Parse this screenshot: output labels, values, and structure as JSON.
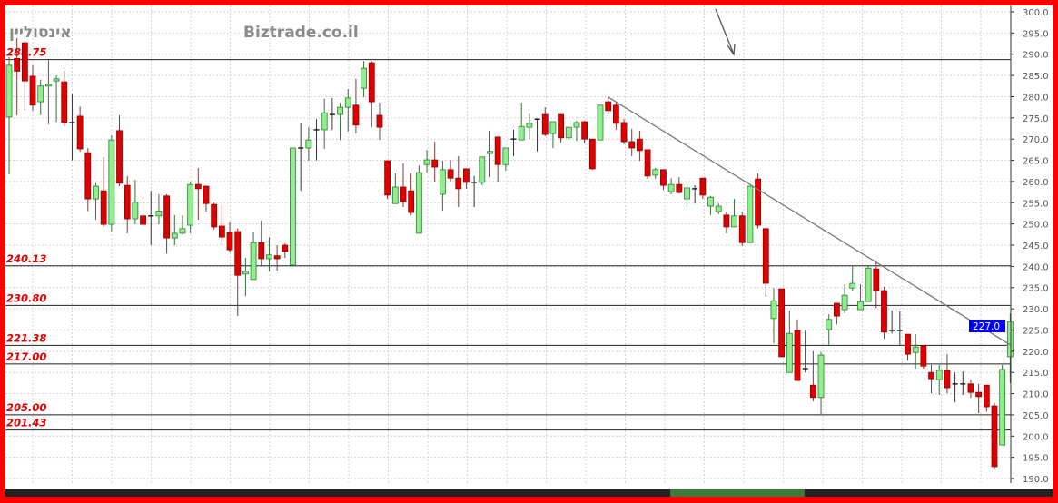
{
  "watermark": {
    "symbol": "אינסוליין",
    "site": "Biztrade.co.il"
  },
  "price_tag": "227.0",
  "colors": {
    "up": "#90ee90",
    "up_border": "#2e7d2e",
    "down": "#e00000",
    "down_border": "#8b0000",
    "frame": "#ff0000",
    "price_tag": "#0000ee",
    "level_label": "#e00000"
  },
  "chart_data": {
    "type": "candlestick",
    "title": "",
    "ylim": [
      188,
      301
    ],
    "y_ticks": [
      "300.0",
      "295.0",
      "290.0",
      "285.0",
      "280.0",
      "275.0",
      "270.0",
      "265.0",
      "260.0",
      "255.0",
      "250.0",
      "245.0",
      "240.0",
      "235.0",
      "230.0",
      "225.0",
      "220.0",
      "215.0",
      "210.0",
      "205.0",
      "200.0",
      "195.0",
      "190.0"
    ],
    "grid": true,
    "ohlc_fields": [
      "open",
      "high",
      "low",
      "close"
    ],
    "candles": [
      [
        275.2,
        289.3,
        261.7,
        287.4
      ],
      [
        289,
        293.8,
        275.6,
        286
      ],
      [
        292.7,
        293.2,
        276.7,
        283.7
      ],
      [
        284.8,
        287.4,
        276.7,
        278
      ],
      [
        278.8,
        284,
        275.6,
        282.5
      ],
      [
        282.5,
        288.9,
        273.5,
        282.9
      ],
      [
        283.7,
        285,
        274,
        284.2
      ],
      [
        283.5,
        286.1,
        273,
        273.9
      ],
      [
        273.9,
        280.7,
        265,
        273.9
      ],
      [
        275.4,
        277.7,
        267,
        267.7
      ],
      [
        266.8,
        267.9,
        253,
        255.9
      ],
      [
        255.9,
        259.6,
        251,
        258.9
      ],
      [
        257.8,
        265.8,
        249.3,
        249.9
      ],
      [
        249.9,
        270.9,
        248.2,
        269.8
      ],
      [
        272,
        275.6,
        258.9,
        259.6
      ],
      [
        259.1,
        261.3,
        247.8,
        251.2
      ],
      [
        251.2,
        260.4,
        249.9,
        255.1
      ],
      [
        251.9,
        256.3,
        249.9,
        249.9
      ],
      [
        251.9,
        257.8,
        245,
        251.9
      ],
      [
        251.9,
        257,
        249.9,
        253
      ],
      [
        256.6,
        257,
        243,
        246.7
      ],
      [
        246.7,
        252.1,
        245,
        247.8
      ],
      [
        247.8,
        252,
        247.6,
        248.9
      ],
      [
        249.7,
        260,
        247.8,
        259.3
      ],
      [
        259.3,
        263.2,
        251,
        258.3
      ],
      [
        258.9,
        258.9,
        252.9,
        254.8
      ],
      [
        254.6,
        255.1,
        248.6,
        249.3
      ],
      [
        249.5,
        254.8,
        245,
        246.9
      ],
      [
        248,
        250.4,
        243.3,
        243.9
      ],
      [
        248.2,
        248.9,
        228.3,
        237.9
      ],
      [
        238.2,
        242,
        233,
        238.8
      ],
      [
        236.9,
        248,
        236.9,
        245.6
      ],
      [
        245.6,
        250.8,
        240.1,
        241.8
      ],
      [
        241.8,
        246.9,
        238.8,
        242.7
      ],
      [
        242.5,
        245,
        239,
        241.8
      ],
      [
        245,
        245.4,
        242,
        243.5
      ],
      [
        240.3,
        267.9,
        240.3,
        267.9
      ],
      [
        267.9,
        273.7,
        257.8,
        267.9
      ],
      [
        267.9,
        272.8,
        264.9,
        269.8
      ],
      [
        272.2,
        274.7,
        265,
        272.2
      ],
      [
        272.2,
        279.5,
        267.7,
        276.2
      ],
      [
        275.8,
        279.7,
        272.2,
        275.8
      ],
      [
        275.8,
        278.6,
        269.8,
        277.5
      ],
      [
        277.5,
        281.8,
        271.8,
        279.7
      ],
      [
        278,
        284.2,
        271.3,
        273.3
      ],
      [
        282,
        288.4,
        279.9,
        286.7
      ],
      [
        288,
        288.4,
        272.8,
        278.8
      ],
      [
        275.6,
        278.6,
        269.8,
        272.8
      ],
      [
        264.9,
        264.9,
        255.9,
        256.8
      ],
      [
        254.8,
        261.9,
        254.8,
        258.7
      ],
      [
        258.7,
        264.3,
        254,
        255.3
      ],
      [
        257.8,
        261.9,
        252.1,
        252.7
      ],
      [
        247.8,
        263.8,
        247.8,
        262.1
      ],
      [
        264,
        267.5,
        262.1,
        265.1
      ],
      [
        265.1,
        269.4,
        260,
        263.4
      ],
      [
        257,
        264.9,
        253.1,
        262.8
      ],
      [
        262.8,
        265.1,
        260,
        260.8
      ],
      [
        260.8,
        266,
        254,
        258.3
      ],
      [
        263,
        263,
        258.3,
        259.8
      ],
      [
        259.8,
        261.3,
        254,
        259.8
      ],
      [
        259.8,
        265.8,
        259.1,
        265.8
      ],
      [
        266.6,
        272,
        261,
        267.1
      ],
      [
        270.5,
        270.5,
        260,
        264
      ],
      [
        264,
        267.9,
        262.6,
        267.9
      ],
      [
        270,
        272.2,
        266,
        270
      ],
      [
        269.8,
        278.6,
        269.8,
        273
      ],
      [
        272.8,
        276,
        270,
        273.7
      ],
      [
        274.7,
        274.7,
        267.1,
        274.7
      ],
      [
        275.8,
        277.5,
        270.7,
        271.1
      ],
      [
        271.3,
        274.1,
        267.9,
        274.1
      ],
      [
        275.8,
        275.8,
        269.2,
        270.3
      ],
      [
        270.3,
        272.8,
        269.8,
        272.8
      ],
      [
        272.8,
        274.3,
        269.6,
        273.9
      ],
      [
        274.1,
        274.3,
        269,
        270
      ],
      [
        270,
        270,
        262.8,
        263
      ],
      [
        269.8,
        278,
        269.8,
        278
      ],
      [
        278.8,
        279.9,
        275.8,
        276.7
      ],
      [
        278,
        278.6,
        272.2,
        273.7
      ],
      [
        273.9,
        274.7,
        268.8,
        269.4
      ],
      [
        269.4,
        272.4,
        266,
        267.9
      ],
      [
        270,
        272,
        264.9,
        267.3
      ],
      [
        267.5,
        267.5,
        260.6,
        261.3
      ],
      [
        261.5,
        263.2,
        260.6,
        262.8
      ],
      [
        262.8,
        262.8,
        258,
        259.1
      ],
      [
        257.6,
        260.8,
        257,
        259.3
      ],
      [
        259.3,
        261,
        257.2,
        257.4
      ],
      [
        255.9,
        259.8,
        254,
        258.5
      ],
      [
        258.3,
        259.1,
        254.8,
        258.3
      ],
      [
        260.8,
        260.8,
        255.9,
        256.8
      ],
      [
        254.2,
        256.6,
        252.1,
        256.3
      ],
      [
        252.9,
        254.8,
        252.3,
        254.2
      ],
      [
        252.1,
        252.9,
        247.8,
        249.3
      ],
      [
        249.3,
        255.9,
        249.3,
        251.9
      ],
      [
        251.9,
        252.9,
        244.8,
        245.6
      ],
      [
        245.6,
        258.9,
        245.6,
        258.9
      ],
      [
        260.6,
        261.9,
        248.9,
        249.7
      ],
      [
        248.9,
        248.9,
        232.8,
        236
      ],
      [
        227.7,
        234.9,
        221.9,
        231.9
      ],
      [
        234.7,
        234.7,
        218.7,
        218.7
      ],
      [
        215,
        229.6,
        215,
        224.2
      ],
      [
        224.9,
        227.5,
        213.1,
        213.1
      ],
      [
        215.9,
        224.9,
        215,
        215.9
      ],
      [
        212,
        220,
        208.2,
        209.1
      ],
      [
        209.1,
        219.8,
        205,
        219.1
      ],
      [
        225.1,
        228.7,
        221.5,
        227.5
      ],
      [
        231.3,
        231.3,
        226.4,
        228.3
      ],
      [
        229.8,
        235.8,
        229,
        233.2
      ],
      [
        234.9,
        240.1,
        234.3,
        236
      ],
      [
        229.8,
        235.8,
        229.8,
        231.7
      ],
      [
        231.7,
        240.1,
        231.7,
        239.6
      ],
      [
        239.4,
        241.4,
        230.2,
        234.3
      ],
      [
        234.3,
        235.2,
        223,
        224.5
      ],
      [
        224.9,
        229.6,
        224.2,
        224.9
      ],
      [
        224.9,
        229.4,
        221.5,
        224.9
      ],
      [
        224,
        224,
        217.8,
        219.3
      ],
      [
        219.7,
        224,
        215.9,
        221
      ],
      [
        221.3,
        221.3,
        215.9,
        216.5
      ],
      [
        215,
        216.8,
        210.1,
        213.5
      ],
      [
        213.3,
        216.8,
        209.7,
        215.5
      ],
      [
        215.5,
        219.3,
        210.1,
        211.4
      ],
      [
        212.3,
        215,
        208,
        212.3
      ],
      [
        212.3,
        215.2,
        209.7,
        212.3
      ],
      [
        212.3,
        213.3,
        209,
        210.3
      ],
      [
        210.3,
        212.3,
        205.4,
        209.3
      ],
      [
        212,
        212,
        205.8,
        206.9
      ],
      [
        207.1,
        207.8,
        192.1,
        192.8
      ],
      [
        197.9,
        216.8,
        197.9,
        215.7
      ],
      [
        218.7,
        228.9,
        212.5,
        227
      ]
    ],
    "levels": [
      "288.75",
      "240.13",
      "230.80",
      "221.38",
      "217.00",
      "205.00",
      "201.43"
    ],
    "trendline": {
      "from_candle": 77,
      "from_value": 279.9,
      "to_candle": 128,
      "to_value": 221.5
    },
    "last_price": 227.0
  }
}
